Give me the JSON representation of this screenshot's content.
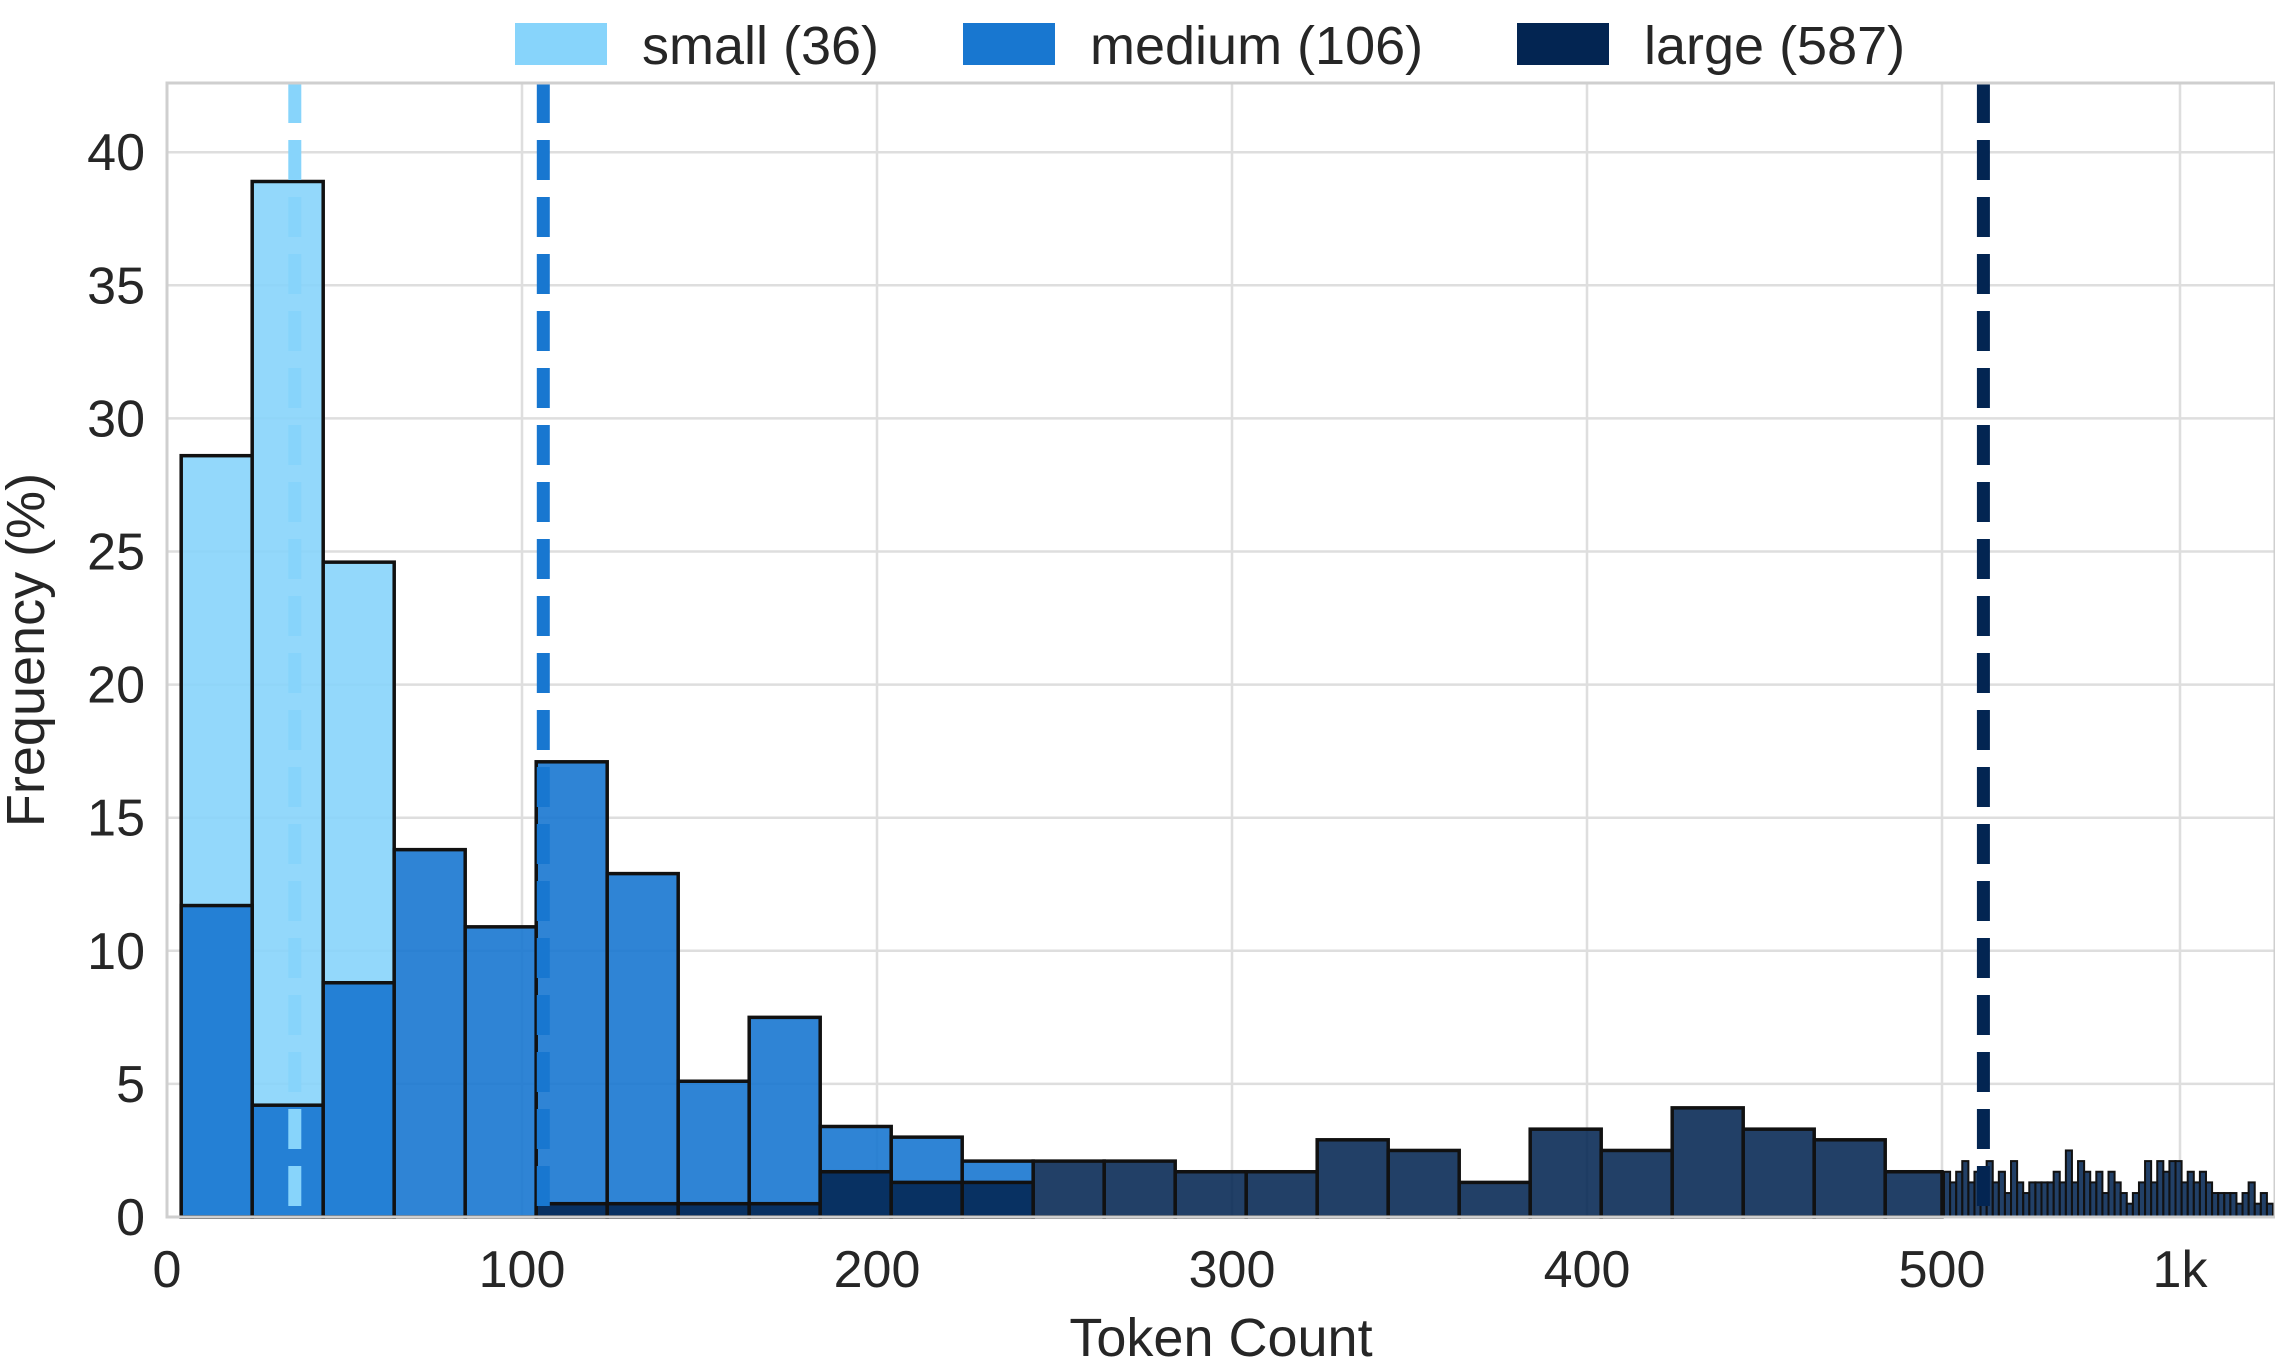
{
  "chart_data": {
    "type": "bar",
    "subtype": "overlapping-histogram",
    "xlabel": "Token Count",
    "ylabel": "Frequency (%)",
    "ylim": [
      0,
      42.6
    ],
    "y_ticks": [
      0,
      5,
      10,
      15,
      20,
      25,
      30,
      35,
      40
    ],
    "x_ticks": [
      {
        "value": 0,
        "label": "0"
      },
      {
        "value": 100,
        "label": "100"
      },
      {
        "value": 200,
        "label": "200"
      },
      {
        "value": 300,
        "label": "300"
      },
      {
        "value": 400,
        "label": "400"
      },
      {
        "value": 500,
        "label": "500"
      },
      {
        "value": 1000,
        "label": "1k"
      }
    ],
    "x_axis_note": "linear 0-500, compressed scale 500-1k+",
    "grid": true,
    "legend_position": "top-center",
    "series": [
      {
        "name": "small (36)",
        "color": "#87d4fb",
        "median_line": 36,
        "bins": [
          {
            "x0": 4,
            "x1": 24,
            "value": 28.6
          },
          {
            "x0": 24,
            "x1": 44,
            "value": 38.9
          },
          {
            "x0": 44,
            "x1": 64,
            "value": 24.6
          }
        ]
      },
      {
        "name": "medium (106)",
        "color": "#1877d0",
        "median_line": 106,
        "bins": [
          {
            "x0": 4,
            "x1": 24,
            "value": 11.7
          },
          {
            "x0": 24,
            "x1": 44,
            "value": 4.2
          },
          {
            "x0": 44,
            "x1": 64,
            "value": 8.8
          },
          {
            "x0": 64,
            "x1": 84,
            "value": 13.8
          },
          {
            "x0": 84,
            "x1": 104,
            "value": 10.9
          },
          {
            "x0": 104,
            "x1": 124,
            "value": 17.1
          },
          {
            "x0": 124,
            "x1": 144,
            "value": 12.9
          },
          {
            "x0": 144,
            "x1": 164,
            "value": 5.1
          },
          {
            "x0": 164,
            "x1": 184,
            "value": 7.5
          },
          {
            "x0": 184,
            "x1": 204,
            "value": 3.4
          },
          {
            "x0": 204,
            "x1": 224,
            "value": 3.0
          },
          {
            "x0": 224,
            "x1": 244,
            "value": 2.1
          }
        ]
      },
      {
        "name": "large (587)",
        "color": "#032552",
        "median_line": 587,
        "bins": [
          {
            "x0": 104,
            "x1": 124,
            "value": 0.5
          },
          {
            "x0": 124,
            "x1": 144,
            "value": 0.5
          },
          {
            "x0": 144,
            "x1": 164,
            "value": 0.5
          },
          {
            "x0": 164,
            "x1": 184,
            "value": 0.5
          },
          {
            "x0": 184,
            "x1": 204,
            "value": 1.7
          },
          {
            "x0": 204,
            "x1": 224,
            "value": 1.3
          },
          {
            "x0": 224,
            "x1": 244,
            "value": 1.3
          },
          {
            "x0": 244,
            "x1": 264,
            "value": 2.1
          },
          {
            "x0": 264,
            "x1": 284,
            "value": 2.1
          },
          {
            "x0": 284,
            "x1": 304,
            "value": 1.7
          },
          {
            "x0": 304,
            "x1": 324,
            "value": 1.7
          },
          {
            "x0": 324,
            "x1": 344,
            "value": 2.9
          },
          {
            "x0": 344,
            "x1": 364,
            "value": 2.5
          },
          {
            "x0": 364,
            "x1": 384,
            "value": 1.3
          },
          {
            "x0": 384,
            "x1": 404,
            "value": 3.3
          },
          {
            "x0": 404,
            "x1": 424,
            "value": 2.5
          },
          {
            "x0": 424,
            "x1": 444,
            "value": 4.1
          },
          {
            "x0": 444,
            "x1": 464,
            "value": 3.3
          },
          {
            "x0": 464,
            "x1": 484,
            "value": 2.9
          },
          {
            "x0": 484,
            "x1": 500,
            "value": 1.7
          }
        ],
        "tail_values": [
          1.7,
          1.3,
          1.7,
          2.1,
          1.3,
          1.7,
          0.9,
          2.1,
          1.3,
          1.7,
          0.9,
          2.1,
          1.3,
          0.9,
          1.3,
          1.3,
          1.3,
          1.3,
          1.7,
          1.3,
          2.5,
          1.3,
          2.1,
          1.7,
          1.3,
          1.7,
          0.9,
          1.7,
          1.3,
          0.9,
          0.5,
          0.9,
          1.3,
          2.1,
          1.3,
          2.1,
          1.7,
          2.1,
          2.1,
          1.3,
          1.7,
          1.3,
          1.7,
          1.3,
          0.9,
          0.9,
          0.9,
          0.9,
          0.5,
          0.9,
          1.3,
          0.5,
          0.9,
          0.5
        ]
      }
    ]
  }
}
